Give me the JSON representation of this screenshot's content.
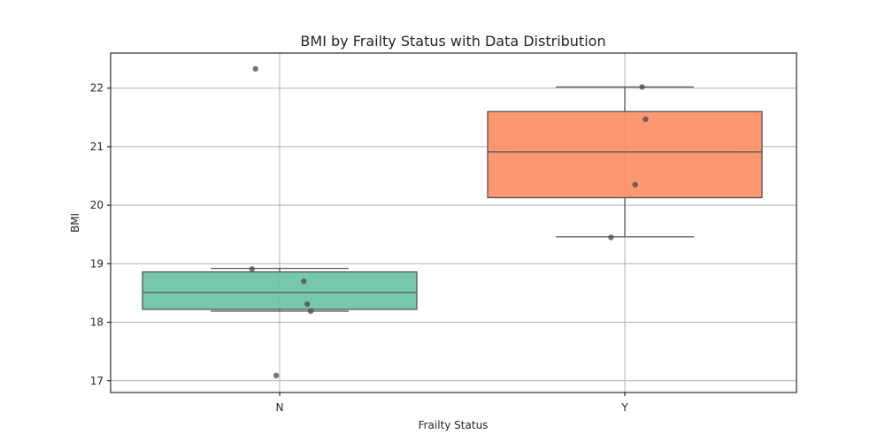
{
  "chart_data": {
    "type": "box",
    "title": "BMI by Frailty Status with Data Distribution",
    "xlabel": "Frailty Status",
    "ylabel": "BMI",
    "categories": [
      "N",
      "Y"
    ],
    "ylim": [
      16.8,
      22.6
    ],
    "yticks": [
      17,
      18,
      19,
      20,
      21,
      22
    ],
    "grid": true,
    "boxes": [
      {
        "category": "N",
        "whisker_low": 18.19,
        "q1": 18.22,
        "median": 18.51,
        "q3": 18.86,
        "whisker_high": 18.92,
        "color": "#66c2a5",
        "outliers": [
          22.33,
          17.09
        ]
      },
      {
        "category": "Y",
        "whisker_low": 19.46,
        "q1": 20.13,
        "median": 20.91,
        "q3": 21.6,
        "whisker_high": 22.02,
        "color": "#fc8d62",
        "outliers": []
      }
    ],
    "points": [
      {
        "category": "N",
        "y": 22.33,
        "jitter": -0.07
      },
      {
        "category": "N",
        "y": 18.91,
        "jitter": -0.08
      },
      {
        "category": "N",
        "y": 18.7,
        "jitter": 0.07
      },
      {
        "category": "N",
        "y": 18.31,
        "jitter": 0.08
      },
      {
        "category": "N",
        "y": 18.19,
        "jitter": 0.09
      },
      {
        "category": "N",
        "y": 17.09,
        "jitter": -0.01
      },
      {
        "category": "Y",
        "y": 22.02,
        "jitter": 0.05
      },
      {
        "category": "Y",
        "y": 21.47,
        "jitter": 0.06
      },
      {
        "category": "Y",
        "y": 20.35,
        "jitter": 0.03
      },
      {
        "category": "Y",
        "y": 19.45,
        "jitter": -0.04
      }
    ]
  }
}
